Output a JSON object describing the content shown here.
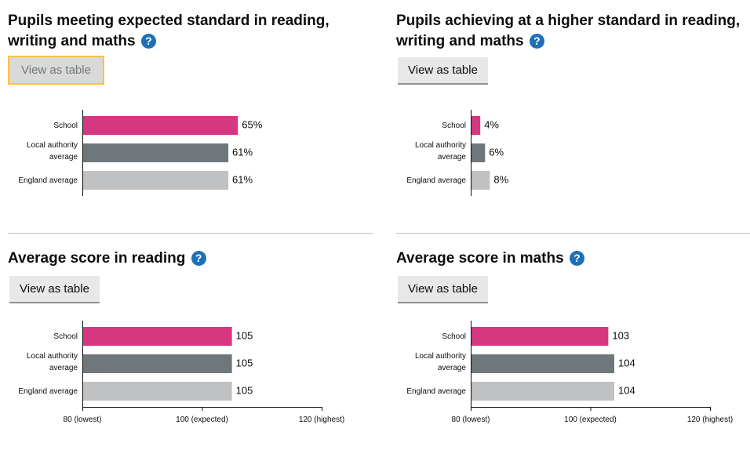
{
  "colors": {
    "school": "#d53880",
    "local_authority": "#6f777b",
    "england": "#bfc1c3",
    "help_icon": "#1d70b8",
    "focus": "#ffbf47"
  },
  "help_icon_glyph": "?",
  "view_table_label": "View as table",
  "chart_data": [
    {
      "type": "bar",
      "orientation": "horizontal",
      "title": "Pupils meeting expected standard in reading, writing and maths",
      "categories": [
        [
          "School"
        ],
        [
          "Local authority",
          "average"
        ],
        [
          "England average"
        ]
      ],
      "values": [
        65,
        61,
        61
      ],
      "value_labels": [
        "65%",
        "61%",
        "61%"
      ],
      "xlim": [
        0,
        100
      ],
      "grid": false
    },
    {
      "type": "bar",
      "orientation": "horizontal",
      "title": "Pupils achieving at a higher standard in reading, writing and maths",
      "categories": [
        [
          "School"
        ],
        [
          "Local authority",
          "average"
        ],
        [
          "England average"
        ]
      ],
      "values": [
        4,
        6,
        8
      ],
      "value_labels": [
        "4%",
        "6%",
        "8%"
      ],
      "xlim": [
        0,
        100
      ],
      "grid": false
    },
    {
      "type": "bar",
      "orientation": "horizontal",
      "title": "Average score in reading",
      "categories": [
        [
          "School"
        ],
        [
          "Local authority",
          "average"
        ],
        [
          "England average"
        ]
      ],
      "values": [
        105,
        105,
        105
      ],
      "value_labels": [
        "105",
        "105",
        "105"
      ],
      "xlim": [
        80,
        120
      ],
      "ticks": [
        80,
        100,
        120
      ],
      "tick_labels": [
        "80 (lowest)",
        "100 (expected)",
        "120 (highest)"
      ],
      "grid": false
    },
    {
      "type": "bar",
      "orientation": "horizontal",
      "title": "Average score in maths",
      "categories": [
        [
          "School"
        ],
        [
          "Local authority",
          "average"
        ],
        [
          "England average"
        ]
      ],
      "values": [
        103,
        104,
        104
      ],
      "value_labels": [
        "103",
        "104",
        "104"
      ],
      "xlim": [
        80,
        120
      ],
      "ticks": [
        80,
        100,
        120
      ],
      "tick_labels": [
        "80 (lowest)",
        "100 (expected)",
        "120 (highest)"
      ],
      "grid": false
    }
  ]
}
